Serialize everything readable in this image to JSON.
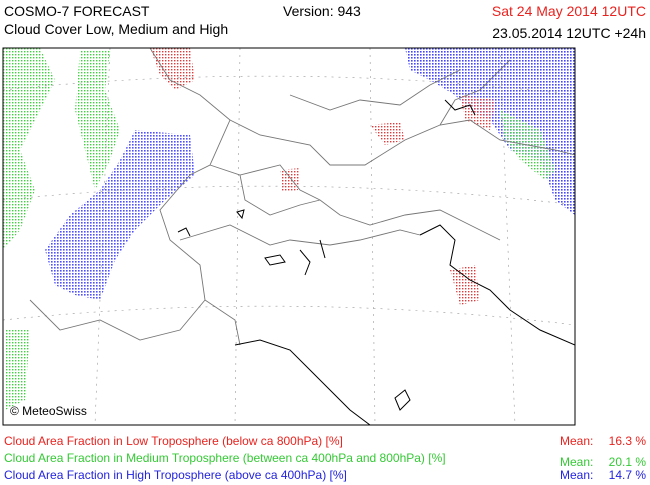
{
  "header": {
    "title": "COSMO-7 FORECAST",
    "subtitle": "Cloud Cover Low, Medium and High",
    "version": "Version: 943",
    "valid_time": "Sat 24 May 2014 12UTC",
    "run": "23.05.2014 12UTC +24h"
  },
  "map": {
    "credit": "© MeteoSwiss"
  },
  "legend": [
    {
      "label": "Cloud Area Fraction in Low Troposphere (below ca 800hPa) [%]",
      "mean_label": "Mean:",
      "mean": "16.3 %"
    },
    {
      "label": "Cloud Area Fraction in Medium Troposphere (between ca 400hPa and 800hPa) [%]",
      "mean_label": "Mean:",
      "mean": "20.1 %"
    },
    {
      "label": "Cloud Area Fraction in High Troposphere (above ca 400hPa) [%]",
      "mean_label": "Mean:",
      "mean": "14.7 %"
    }
  ]
}
